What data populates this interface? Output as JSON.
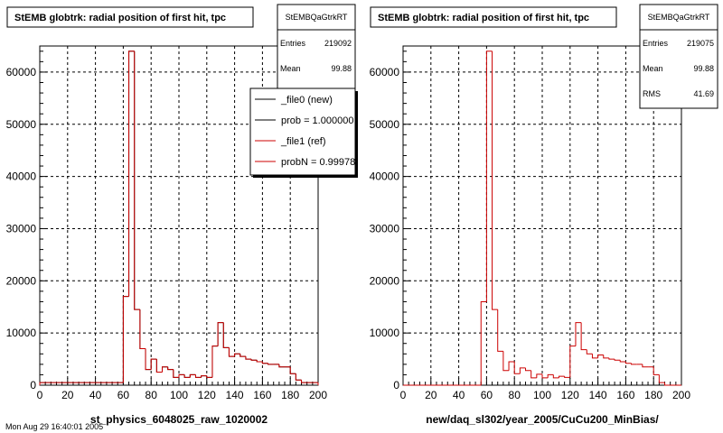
{
  "footer_text": "Mon Aug 29 16:40:01 2005",
  "chart_data": [
    {
      "type": "histogram",
      "title": "StEMB globtrk: radial position of first hit, tpc",
      "xlabel": "st_physics_6048025_raw_1020002",
      "ylabel": "",
      "xlim": [
        0,
        200
      ],
      "ylim": [
        0,
        65000
      ],
      "x_ticks": [
        "0",
        "20",
        "40",
        "60",
        "80",
        "100",
        "120",
        "140",
        "160",
        "180",
        "200"
      ],
      "y_ticks": [
        "0",
        "10000",
        "20000",
        "30000",
        "40000",
        "50000",
        "60000"
      ],
      "grid": true,
      "bin_width": 4,
      "bins_x": [
        0,
        4,
        8,
        12,
        16,
        20,
        24,
        28,
        32,
        36,
        40,
        44,
        48,
        52,
        56,
        60,
        64,
        68,
        72,
        76,
        80,
        84,
        88,
        92,
        96,
        100,
        104,
        108,
        112,
        116,
        120,
        124,
        128,
        132,
        136,
        140,
        144,
        148,
        152,
        156,
        160,
        164,
        168,
        172,
        176,
        180,
        184,
        188,
        192,
        196
      ],
      "series": [
        {
          "name": "_file0 (new)",
          "color": "#000000",
          "values": [
            500,
            500,
            500,
            500,
            500,
            500,
            500,
            500,
            500,
            500,
            500,
            500,
            500,
            500,
            500,
            17000,
            64000,
            14500,
            7000,
            3000,
            5000,
            2500,
            3500,
            3000,
            1500,
            2000,
            1500,
            2000,
            1500,
            1800,
            1500,
            7500,
            12000,
            7200,
            5500,
            6000,
            5500,
            5000,
            4800,
            4500,
            4200,
            4000,
            4000,
            3500,
            3500,
            2200,
            1000,
            500,
            500,
            500
          ]
        },
        {
          "name": "_file1 (ref)",
          "color": "#cc0000",
          "values": [
            500,
            500,
            500,
            500,
            500,
            500,
            500,
            500,
            500,
            500,
            500,
            500,
            500,
            500,
            500,
            17000,
            64000,
            14500,
            7000,
            3000,
            5000,
            2500,
            3500,
            3000,
            1500,
            2000,
            1500,
            2000,
            1500,
            1800,
            1500,
            7500,
            12000,
            7200,
            5500,
            6000,
            5500,
            5000,
            4800,
            4500,
            4200,
            4000,
            4000,
            3500,
            3500,
            2200,
            1000,
            500,
            500,
            500
          ]
        }
      ],
      "stats": {
        "title": "StEMBQaGtrkRT",
        "rows": [
          {
            "label": "Entries",
            "value": "219092"
          },
          {
            "label": "Mean",
            "value": "99.88"
          }
        ]
      },
      "legend": {
        "entries": [
          "_file0 (new)",
          "prob = 1.000000",
          "_file1 (ref)",
          "probN = 0.999781"
        ],
        "placement": "top-right"
      }
    },
    {
      "type": "histogram",
      "title": "StEMB globtrk: radial position of first hit, tpc",
      "xlabel": "new/daq_sl302/year_2005/CuCu200_MinBias/",
      "ylabel": "",
      "xlim": [
        0,
        200
      ],
      "ylim": [
        0,
        65000
      ],
      "x_ticks": [
        "0",
        "20",
        "40",
        "60",
        "80",
        "100",
        "120",
        "140",
        "160",
        "180",
        "200"
      ],
      "y_ticks": [
        "0",
        "10000",
        "20000",
        "30000",
        "40000",
        "50000",
        "60000"
      ],
      "grid": true,
      "bin_width": 4,
      "bins_x": [
        0,
        4,
        8,
        12,
        16,
        20,
        24,
        28,
        32,
        36,
        40,
        44,
        48,
        52,
        56,
        60,
        64,
        68,
        72,
        76,
        80,
        84,
        88,
        92,
        96,
        100,
        104,
        108,
        112,
        116,
        120,
        124,
        128,
        132,
        136,
        140,
        144,
        148,
        152,
        156,
        160,
        164,
        168,
        172,
        176,
        180,
        184,
        188,
        192,
        196
      ],
      "series": [
        {
          "name": "_file1 (ref)",
          "color": "#cc0000",
          "values": [
            0,
            0,
            0,
            0,
            0,
            0,
            0,
            0,
            0,
            0,
            0,
            0,
            0,
            0,
            16000,
            64000,
            14500,
            6500,
            2800,
            4500,
            2200,
            3300,
            2800,
            1400,
            2100,
            1400,
            2000,
            1400,
            1700,
            1500,
            7500,
            12000,
            6800,
            6000,
            5200,
            5800,
            5200,
            5000,
            4800,
            4500,
            4200,
            4000,
            4000,
            3500,
            3500,
            2000,
            500,
            0,
            0,
            0
          ]
        }
      ],
      "stats": {
        "title": "StEMBQaGtrkRT",
        "rows": [
          {
            "label": "Entries",
            "value": "219075"
          },
          {
            "label": "Mean",
            "value": "99.88"
          },
          {
            "label": "RMS",
            "value": "41.69"
          }
        ]
      }
    }
  ]
}
